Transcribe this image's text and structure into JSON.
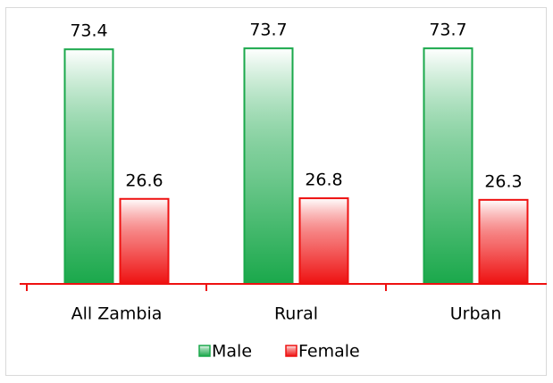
{
  "chart_data": {
    "type": "bar",
    "categories": [
      "All Zambia",
      "Rural",
      "Urban"
    ],
    "series": [
      {
        "name": "Male",
        "color": "#1aa84b",
        "values": [
          73.4,
          73.7,
          73.7
        ]
      },
      {
        "name": "Female",
        "color": "#ee1111",
        "values": [
          26.6,
          26.8,
          26.3
        ]
      }
    ],
    "ylim": [
      0,
      80
    ]
  }
}
